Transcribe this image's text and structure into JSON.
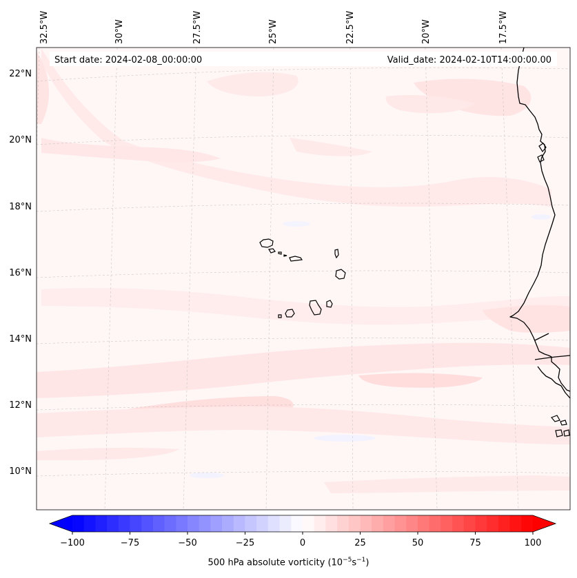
{
  "header": {
    "start_date": "Start date: 2024-02-08_00:00:00",
    "valid_date": "Valid_date: 2024-02-10T14:00:00.00"
  },
  "map": {
    "lon_labels": [
      "32.5°W",
      "30°W",
      "27.5°W",
      "25°W",
      "22.5°W",
      "20°W",
      "17.5°W"
    ],
    "lat_labels": [
      "22°N",
      "20°N",
      "18°N",
      "16°N",
      "14°N",
      "12°N",
      "10°N"
    ],
    "field": "500 hPa absolute vorticity"
  },
  "colorbar": {
    "ticks": [
      "−100",
      "−75",
      "−50",
      "−25",
      "0",
      "25",
      "50",
      "75",
      "100"
    ],
    "title_text": "500 hPa absolute vorticity (10",
    "units_exp1": "−5",
    "units_mid": "s",
    "units_exp2": "−1",
    "units_close": ")",
    "vmin": -100,
    "vmax": 100,
    "levels": 41,
    "colors": {
      "low": "#0000ff",
      "mid": "#ffffff",
      "high": "#ff0000"
    }
  }
}
